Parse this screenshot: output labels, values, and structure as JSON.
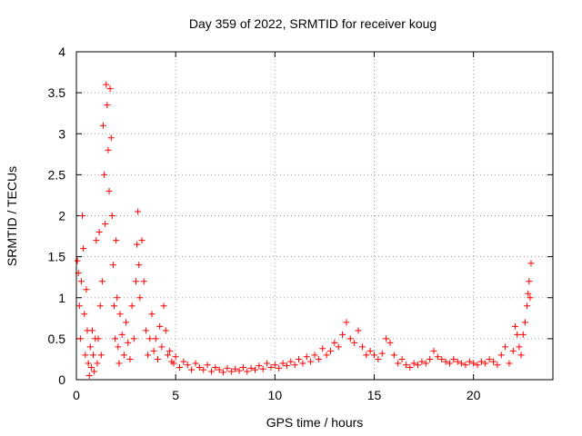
{
  "chart_data": {
    "type": "scatter",
    "title": "Day 359 of 2022, SRMTID for receiver koug",
    "xlabel": "GPS time / hours",
    "ylabel": "SRMTID / TECUs",
    "xlim": [
      0,
      24
    ],
    "ylim": [
      0,
      4
    ],
    "x_ticks": [
      "0",
      "5",
      "10",
      "15",
      "20"
    ],
    "y_ticks": [
      "0",
      "0.5",
      "1",
      "1.5",
      "2",
      "2.5",
      "3",
      "3.5",
      "4"
    ],
    "grid": true,
    "marker": "+",
    "color": "#ff0000",
    "series": [
      {
        "name": "SRMTID",
        "points": [
          [
            0.05,
            1.45
          ],
          [
            0.1,
            1.3
          ],
          [
            0.15,
            0.9
          ],
          [
            0.2,
            0.5
          ],
          [
            0.25,
            1.2
          ],
          [
            0.3,
            2.0
          ],
          [
            0.35,
            1.6
          ],
          [
            0.4,
            0.8
          ],
          [
            0.45,
            0.3
          ],
          [
            0.5,
            1.1
          ],
          [
            0.55,
            0.6
          ],
          [
            0.6,
            0.2
          ],
          [
            0.65,
            0.05
          ],
          [
            0.7,
            0.4
          ],
          [
            0.75,
            0.15
          ],
          [
            0.8,
            0.6
          ],
          [
            0.85,
            0.3
          ],
          [
            0.9,
            0.1
          ],
          [
            0.95,
            0.5
          ],
          [
            1.0,
            1.7
          ],
          [
            1.05,
            0.2
          ],
          [
            1.1,
            0.5
          ],
          [
            1.15,
            1.8
          ],
          [
            1.2,
            0.9
          ],
          [
            1.25,
            0.3
          ],
          [
            1.3,
            1.2
          ],
          [
            1.35,
            3.1
          ],
          [
            1.4,
            2.5
          ],
          [
            1.45,
            1.9
          ],
          [
            1.5,
            3.6
          ],
          [
            1.55,
            3.35
          ],
          [
            1.6,
            2.8
          ],
          [
            1.65,
            2.3
          ],
          [
            1.7,
            3.55
          ],
          [
            1.75,
            2.95
          ],
          [
            1.8,
            2.0
          ],
          [
            1.85,
            1.4
          ],
          [
            1.9,
            0.9
          ],
          [
            1.95,
            0.5
          ],
          [
            2.0,
            1.7
          ],
          [
            2.05,
            1.0
          ],
          [
            2.1,
            0.4
          ],
          [
            2.15,
            0.2
          ],
          [
            2.2,
            0.8
          ],
          [
            2.3,
            0.55
          ],
          [
            2.4,
            0.3
          ],
          [
            2.5,
            0.7
          ],
          [
            2.6,
            0.45
          ],
          [
            2.7,
            0.25
          ],
          [
            2.8,
            0.9
          ],
          [
            2.9,
            0.5
          ],
          [
            3.0,
            1.2
          ],
          [
            3.05,
            1.65
          ],
          [
            3.1,
            2.05
          ],
          [
            3.15,
            1.4
          ],
          [
            3.2,
            1.0
          ],
          [
            3.3,
            1.7
          ],
          [
            3.4,
            1.2
          ],
          [
            3.5,
            0.6
          ],
          [
            3.6,
            0.3
          ],
          [
            3.7,
            0.5
          ],
          [
            3.8,
            0.8
          ],
          [
            3.9,
            0.35
          ],
          [
            4.0,
            0.5
          ],
          [
            4.1,
            0.25
          ],
          [
            4.2,
            0.65
          ],
          [
            4.3,
            0.4
          ],
          [
            4.4,
            0.9
          ],
          [
            4.5,
            0.6
          ],
          [
            4.6,
            0.3
          ],
          [
            4.7,
            0.35
          ],
          [
            4.8,
            0.22
          ],
          [
            4.9,
            0.2
          ],
          [
            5.0,
            0.28
          ],
          [
            5.2,
            0.15
          ],
          [
            5.4,
            0.22
          ],
          [
            5.6,
            0.18
          ],
          [
            5.8,
            0.12
          ],
          [
            6.0,
            0.2
          ],
          [
            6.2,
            0.15
          ],
          [
            6.4,
            0.12
          ],
          [
            6.6,
            0.18
          ],
          [
            6.8,
            0.1
          ],
          [
            7.0,
            0.15
          ],
          [
            7.2,
            0.12
          ],
          [
            7.4,
            0.09
          ],
          [
            7.6,
            0.14
          ],
          [
            7.8,
            0.1
          ],
          [
            8.0,
            0.13
          ],
          [
            8.2,
            0.11
          ],
          [
            8.4,
            0.15
          ],
          [
            8.6,
            0.1
          ],
          [
            8.8,
            0.14
          ],
          [
            9.0,
            0.12
          ],
          [
            9.2,
            0.17
          ],
          [
            9.4,
            0.13
          ],
          [
            9.6,
            0.2
          ],
          [
            9.8,
            0.15
          ],
          [
            10.0,
            0.18
          ],
          [
            10.2,
            0.14
          ],
          [
            10.4,
            0.2
          ],
          [
            10.6,
            0.17
          ],
          [
            10.8,
            0.22
          ],
          [
            11.0,
            0.18
          ],
          [
            11.2,
            0.25
          ],
          [
            11.4,
            0.2
          ],
          [
            11.6,
            0.28
          ],
          [
            11.8,
            0.22
          ],
          [
            12.0,
            0.3
          ],
          [
            12.2,
            0.25
          ],
          [
            12.4,
            0.38
          ],
          [
            12.6,
            0.3
          ],
          [
            12.8,
            0.35
          ],
          [
            13.0,
            0.45
          ],
          [
            13.2,
            0.4
          ],
          [
            13.4,
            0.55
          ],
          [
            13.6,
            0.7
          ],
          [
            13.8,
            0.5
          ],
          [
            14.0,
            0.45
          ],
          [
            14.2,
            0.6
          ],
          [
            14.4,
            0.4
          ],
          [
            14.6,
            0.3
          ],
          [
            14.8,
            0.35
          ],
          [
            15.0,
            0.3
          ],
          [
            15.2,
            0.25
          ],
          [
            15.4,
            0.32
          ],
          [
            15.6,
            0.5
          ],
          [
            15.8,
            0.45
          ],
          [
            16.0,
            0.3
          ],
          [
            16.2,
            0.2
          ],
          [
            16.4,
            0.25
          ],
          [
            16.6,
            0.18
          ],
          [
            16.8,
            0.15
          ],
          [
            17.0,
            0.2
          ],
          [
            17.2,
            0.18
          ],
          [
            17.4,
            0.22
          ],
          [
            17.6,
            0.2
          ],
          [
            17.8,
            0.25
          ],
          [
            18.0,
            0.35
          ],
          [
            18.2,
            0.28
          ],
          [
            18.4,
            0.25
          ],
          [
            18.6,
            0.22
          ],
          [
            18.8,
            0.2
          ],
          [
            19.0,
            0.25
          ],
          [
            19.2,
            0.22
          ],
          [
            19.4,
            0.2
          ],
          [
            19.6,
            0.18
          ],
          [
            19.8,
            0.22
          ],
          [
            20.0,
            0.2
          ],
          [
            20.2,
            0.18
          ],
          [
            20.4,
            0.22
          ],
          [
            20.6,
            0.2
          ],
          [
            20.8,
            0.25
          ],
          [
            21.0,
            0.22
          ],
          [
            21.2,
            0.18
          ],
          [
            21.4,
            0.3
          ],
          [
            21.6,
            0.4
          ],
          [
            21.8,
            0.2
          ],
          [
            22.0,
            0.35
          ],
          [
            22.1,
            0.65
          ],
          [
            22.2,
            0.55
          ],
          [
            22.3,
            0.4
          ],
          [
            22.4,
            0.3
          ],
          [
            22.5,
            0.55
          ],
          [
            22.6,
            0.7
          ],
          [
            22.7,
            0.9
          ],
          [
            22.75,
            1.05
          ],
          [
            22.8,
            1.2
          ],
          [
            22.85,
            1.0
          ],
          [
            22.9,
            1.42
          ]
        ]
      }
    ]
  }
}
